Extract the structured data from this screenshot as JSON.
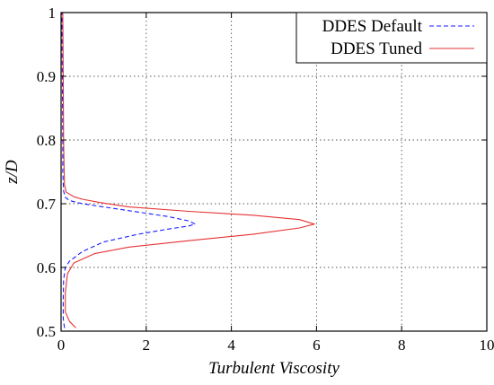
{
  "chart_data": {
    "type": "line",
    "title": "",
    "xlabel": "Turbulent Viscosity",
    "ylabel": "z/D",
    "xlim": [
      0,
      10
    ],
    "ylim": [
      0.5,
      1.0
    ],
    "xticks": [
      "0",
      "2",
      "4",
      "6",
      "8",
      "10"
    ],
    "yticks": [
      "0.5",
      "0.6",
      "0.7",
      "0.8",
      "0.9",
      "1"
    ],
    "grid": true,
    "legend_position": "top-right",
    "series": [
      {
        "name": "DDES Default",
        "color": "#1a1aff",
        "dash": "dashed",
        "points": [
          [
            0.08,
            0.505
          ],
          [
            0.05,
            0.52
          ],
          [
            0.05,
            0.55
          ],
          [
            0.06,
            0.58
          ],
          [
            0.1,
            0.6
          ],
          [
            0.2,
            0.61
          ],
          [
            0.5,
            0.625
          ],
          [
            1.0,
            0.64
          ],
          [
            1.8,
            0.652
          ],
          [
            2.5,
            0.66
          ],
          [
            3.0,
            0.665
          ],
          [
            3.15,
            0.668
          ],
          [
            3.0,
            0.673
          ],
          [
            2.5,
            0.68
          ],
          [
            1.8,
            0.687
          ],
          [
            1.0,
            0.695
          ],
          [
            0.5,
            0.7
          ],
          [
            0.2,
            0.705
          ],
          [
            0.1,
            0.71
          ],
          [
            0.06,
            0.72
          ],
          [
            0.04,
            0.75
          ],
          [
            0.04,
            0.8
          ],
          [
            0.03,
            0.9
          ],
          [
            0.02,
            1.0
          ]
        ]
      },
      {
        "name": "DDES Tuned",
        "color": "#e63232",
        "dash": "solid",
        "points": [
          [
            0.35,
            0.505
          ],
          [
            0.2,
            0.515
          ],
          [
            0.1,
            0.53
          ],
          [
            0.1,
            0.56
          ],
          [
            0.15,
            0.59
          ],
          [
            0.3,
            0.607
          ],
          [
            0.8,
            0.622
          ],
          [
            1.6,
            0.632
          ],
          [
            3.0,
            0.642
          ],
          [
            4.5,
            0.652
          ],
          [
            5.6,
            0.662
          ],
          [
            5.95,
            0.668
          ],
          [
            5.6,
            0.675
          ],
          [
            4.5,
            0.682
          ],
          [
            3.0,
            0.688
          ],
          [
            1.6,
            0.695
          ],
          [
            0.9,
            0.702
          ],
          [
            0.5,
            0.707
          ],
          [
            0.3,
            0.711
          ],
          [
            0.12,
            0.718
          ],
          [
            0.08,
            0.73
          ],
          [
            0.07,
            0.76
          ],
          [
            0.06,
            0.8
          ],
          [
            0.05,
            0.9
          ],
          [
            0.04,
            1.0
          ]
        ]
      }
    ]
  }
}
